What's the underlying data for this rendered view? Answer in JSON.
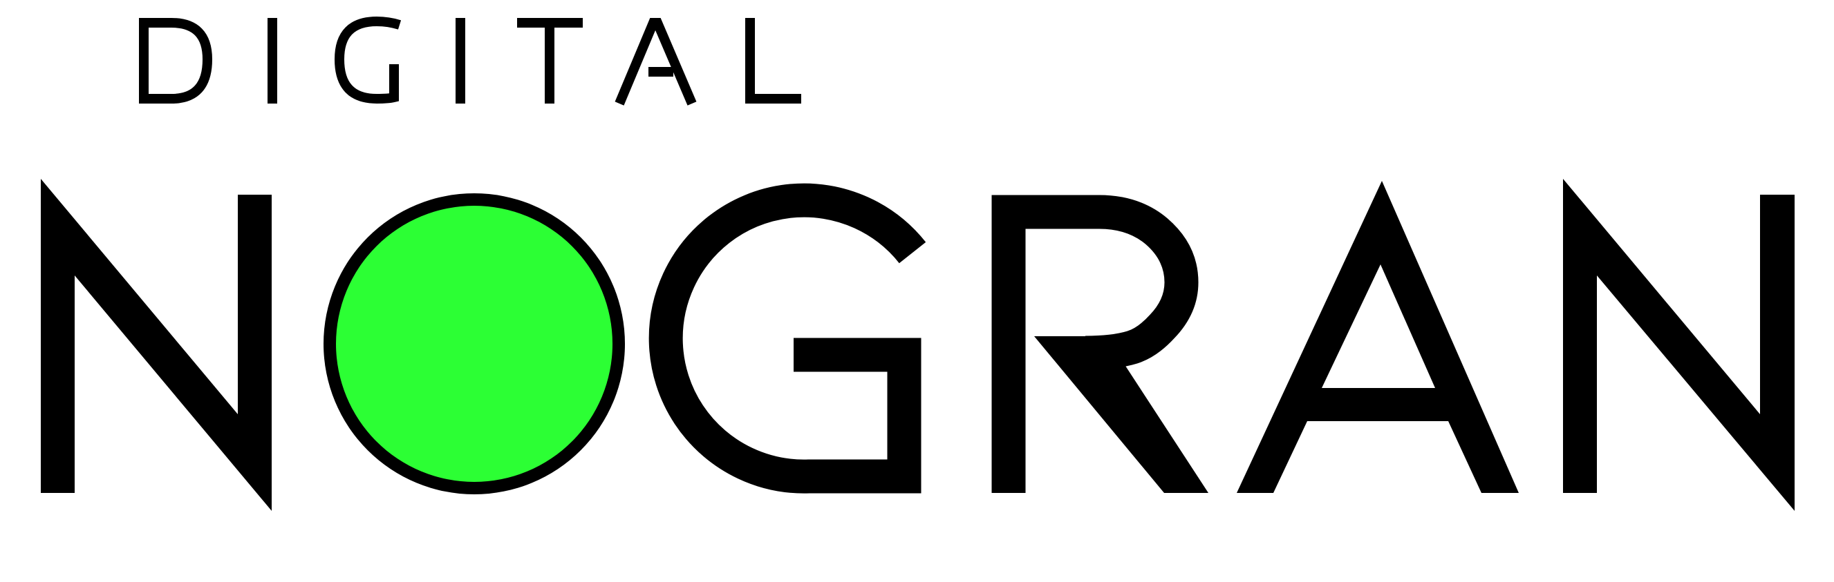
{
  "brand": {
    "line1": "DIGITAL",
    "line2": "NOGRAN"
  },
  "colors": {
    "background": "#ffffff",
    "ink": "#000000",
    "accent": "#2cff34"
  },
  "icons": {
    "o_mark": "green-dot-icon"
  }
}
